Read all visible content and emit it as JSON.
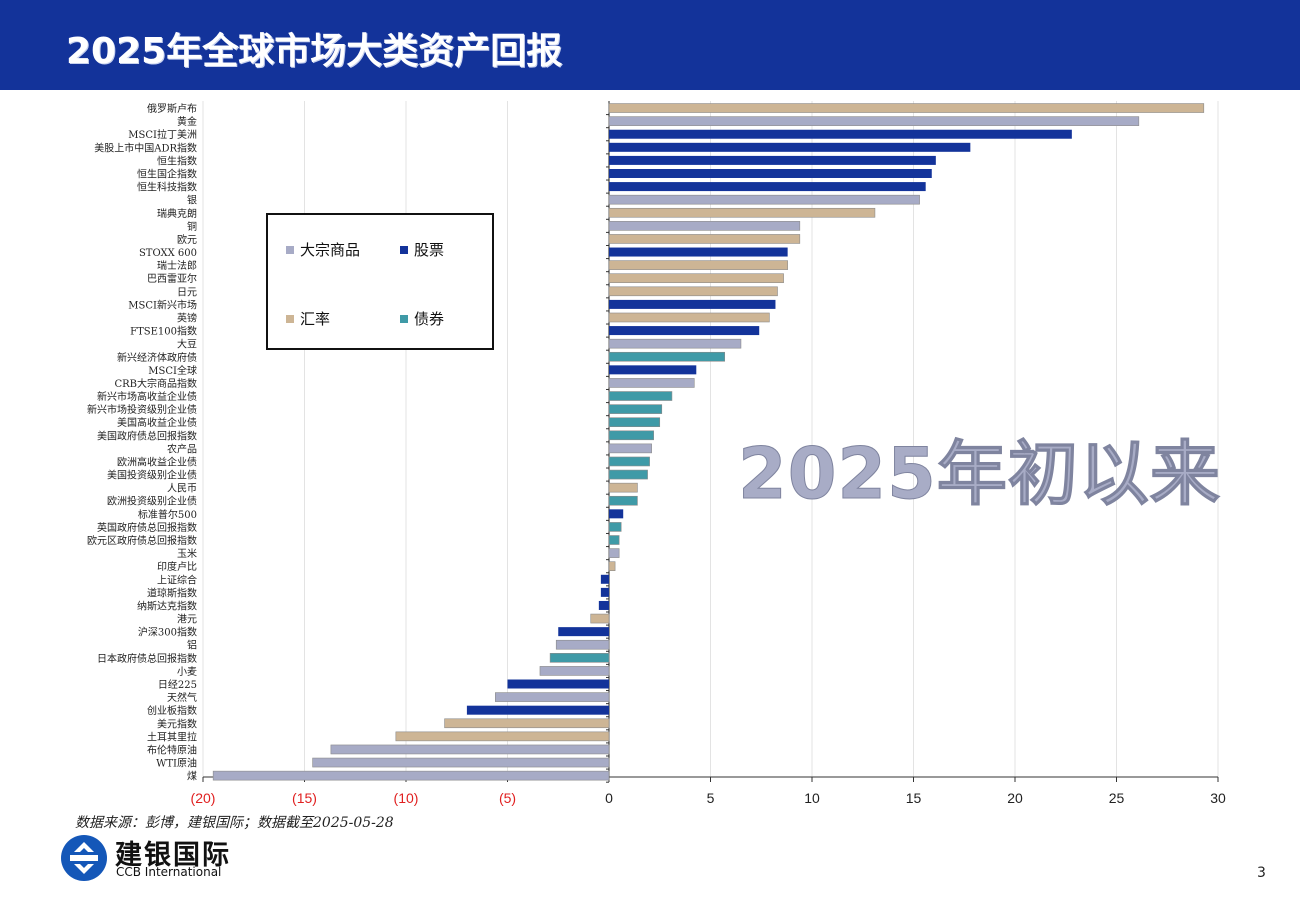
{
  "page": {
    "title": "2025年全球市场大类资产回报",
    "overlay": "2025年初以来",
    "source": "数据来源：彭博，建银国际；数据截至2025-05-28",
    "logo_cn": "建银国际",
    "logo_en": "CCB International",
    "page_number": "3"
  },
  "colors": {
    "header_bg": "#13339a",
    "commodity": "#a7abc6",
    "equity": "#13339a",
    "fx": "#cdb595",
    "bond": "#3f9aa7",
    "negative_tick": "#e02020"
  },
  "chart_data": {
    "type": "bar",
    "orientation": "horizontal",
    "xlim": [
      -20,
      30
    ],
    "x_ticks": [
      -20,
      -15,
      -10,
      -5,
      0,
      5,
      10,
      15,
      20,
      25,
      30
    ],
    "x_tick_labels": [
      "(20)",
      "(15)",
      "(10)",
      "(5)",
      "0",
      "5",
      "10",
      "15",
      "20",
      "25",
      "30"
    ],
    "grid": "vertical",
    "legend_position": "upper-left",
    "legend": [
      {
        "key": "commodity",
        "label": "大宗商品"
      },
      {
        "key": "equity",
        "label": "股票"
      },
      {
        "key": "fx",
        "label": "汇率"
      },
      {
        "key": "bond",
        "label": "债券"
      }
    ],
    "bars": [
      {
        "label": "俄罗斯卢布",
        "value": 29.3,
        "group": "fx"
      },
      {
        "label": "黄金",
        "value": 26.1,
        "group": "commodity"
      },
      {
        "label": "MSCI拉丁美洲",
        "value": 22.8,
        "group": "equity"
      },
      {
        "label": "美股上市中国ADR指数",
        "value": 17.8,
        "group": "equity"
      },
      {
        "label": "恒生指数",
        "value": 16.1,
        "group": "equity"
      },
      {
        "label": "恒生国企指数",
        "value": 15.9,
        "group": "equity"
      },
      {
        "label": "恒生科技指数",
        "value": 15.6,
        "group": "equity"
      },
      {
        "label": "银",
        "value": 15.3,
        "group": "commodity"
      },
      {
        "label": "瑞典克朗",
        "value": 13.1,
        "group": "fx"
      },
      {
        "label": "铜",
        "value": 9.4,
        "group": "commodity"
      },
      {
        "label": "欧元",
        "value": 9.4,
        "group": "fx"
      },
      {
        "label": "STOXX 600",
        "value": 8.8,
        "group": "equity"
      },
      {
        "label": "瑞士法郎",
        "value": 8.8,
        "group": "fx"
      },
      {
        "label": "巴西雷亚尔",
        "value": 8.6,
        "group": "fx"
      },
      {
        "label": "日元",
        "value": 8.3,
        "group": "fx"
      },
      {
        "label": "MSCI新兴市场",
        "value": 8.2,
        "group": "equity"
      },
      {
        "label": "英镑",
        "value": 7.9,
        "group": "fx"
      },
      {
        "label": "FTSE100指数",
        "value": 7.4,
        "group": "equity"
      },
      {
        "label": "大豆",
        "value": 6.5,
        "group": "commodity"
      },
      {
        "label": "新兴经济体政府债",
        "value": 5.7,
        "group": "bond"
      },
      {
        "label": "MSCI全球",
        "value": 4.3,
        "group": "equity"
      },
      {
        "label": "CRB大宗商品指数",
        "value": 4.2,
        "group": "commodity"
      },
      {
        "label": "新兴市场高收益企业债",
        "value": 3.1,
        "group": "bond"
      },
      {
        "label": "新兴市场投资级别企业债",
        "value": 2.6,
        "group": "bond"
      },
      {
        "label": "美国高收益企业债",
        "value": 2.5,
        "group": "bond"
      },
      {
        "label": "美国政府债总回报指数",
        "value": 2.2,
        "group": "bond"
      },
      {
        "label": "农产品",
        "value": 2.1,
        "group": "commodity"
      },
      {
        "label": "欧洲高收益企业债",
        "value": 2.0,
        "group": "bond"
      },
      {
        "label": "美国投资级别企业债",
        "value": 1.9,
        "group": "bond"
      },
      {
        "label": "人民币",
        "value": 1.4,
        "group": "fx"
      },
      {
        "label": "欧洲投资级别企业债",
        "value": 1.4,
        "group": "bond"
      },
      {
        "label": "标准普尔500",
        "value": 0.7,
        "group": "equity"
      },
      {
        "label": "英国政府债总回报指数",
        "value": 0.6,
        "group": "bond"
      },
      {
        "label": "欧元区政府债总回报指数",
        "value": 0.5,
        "group": "bond"
      },
      {
        "label": "玉米",
        "value": 0.5,
        "group": "commodity"
      },
      {
        "label": "印度卢比",
        "value": 0.3,
        "group": "fx"
      },
      {
        "label": "上证综合",
        "value": -0.4,
        "group": "equity"
      },
      {
        "label": "道琼斯指数",
        "value": -0.4,
        "group": "equity"
      },
      {
        "label": "纳斯达克指数",
        "value": -0.5,
        "group": "equity"
      },
      {
        "label": "港元",
        "value": -0.9,
        "group": "fx"
      },
      {
        "label": "沪深300指数",
        "value": -2.5,
        "group": "equity"
      },
      {
        "label": "铝",
        "value": -2.6,
        "group": "commodity"
      },
      {
        "label": "日本政府债总回报指数",
        "value": -2.9,
        "group": "bond"
      },
      {
        "label": "小麦",
        "value": -3.4,
        "group": "commodity"
      },
      {
        "label": "日经225",
        "value": -5.0,
        "group": "equity"
      },
      {
        "label": "天然气",
        "value": -5.6,
        "group": "commodity"
      },
      {
        "label": "创业板指数",
        "value": -7.0,
        "group": "equity"
      },
      {
        "label": "美元指数",
        "value": -8.1,
        "group": "fx"
      },
      {
        "label": "土耳其里拉",
        "value": -10.5,
        "group": "fx"
      },
      {
        "label": "布伦特原油",
        "value": -13.7,
        "group": "commodity"
      },
      {
        "label": "WTI原油",
        "value": -14.6,
        "group": "commodity"
      },
      {
        "label": "煤",
        "value": -19.5,
        "group": "commodity"
      }
    ]
  }
}
